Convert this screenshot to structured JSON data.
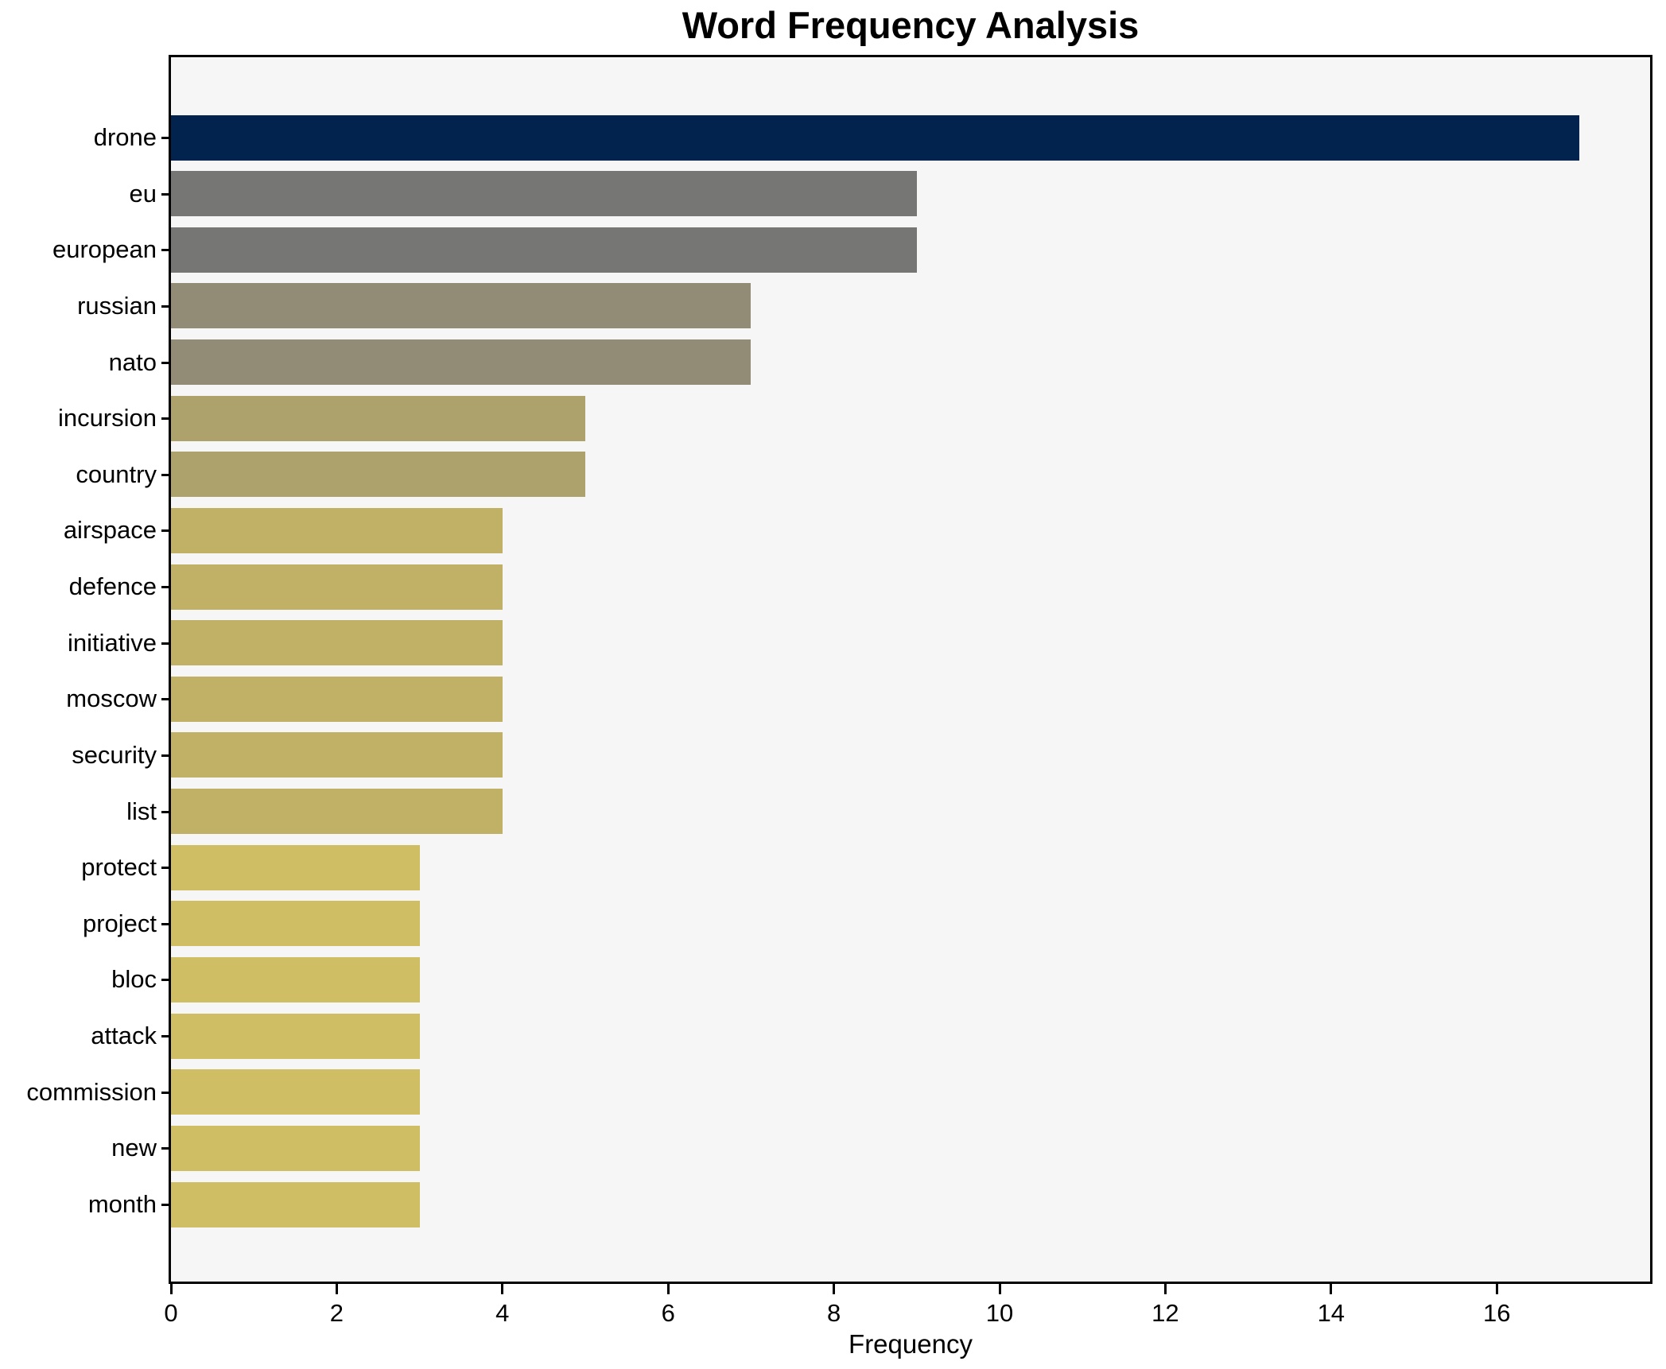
{
  "chart_data": {
    "type": "bar",
    "orientation": "horizontal",
    "title": "Word Frequency Analysis",
    "xlabel": "Frequency",
    "ylabel": "",
    "categories": [
      "drone",
      "eu",
      "european",
      "russian",
      "nato",
      "incursion",
      "country",
      "airspace",
      "defence",
      "initiative",
      "moscow",
      "security",
      "list",
      "protect",
      "project",
      "bloc",
      "attack",
      "commission",
      "new",
      "month"
    ],
    "values": [
      17,
      9,
      9,
      7,
      7,
      5,
      5,
      4,
      4,
      4,
      4,
      4,
      4,
      3,
      3,
      3,
      3,
      3,
      3,
      3
    ],
    "bar_colors": [
      "#02234e",
      "#767674",
      "#767674",
      "#928b75",
      "#928b75",
      "#ada16c",
      "#ada16c",
      "#c1b167",
      "#c1b167",
      "#c1b167",
      "#c1b167",
      "#c1b167",
      "#c1b167",
      "#cfbe63",
      "#cfbe63",
      "#cfbe63",
      "#cfbe63",
      "#cfbe63",
      "#cfbe63",
      "#cfbe63"
    ],
    "xlim": [
      0,
      17.85
    ],
    "xticks": [
      0,
      2,
      4,
      6,
      8,
      10,
      12,
      14,
      16
    ],
    "grid": false,
    "legend_position": "none",
    "colors": {
      "figure_background": "#ffffff",
      "plot_background": "#f6f6f6",
      "axis": "#000000",
      "text": "#000000"
    }
  }
}
